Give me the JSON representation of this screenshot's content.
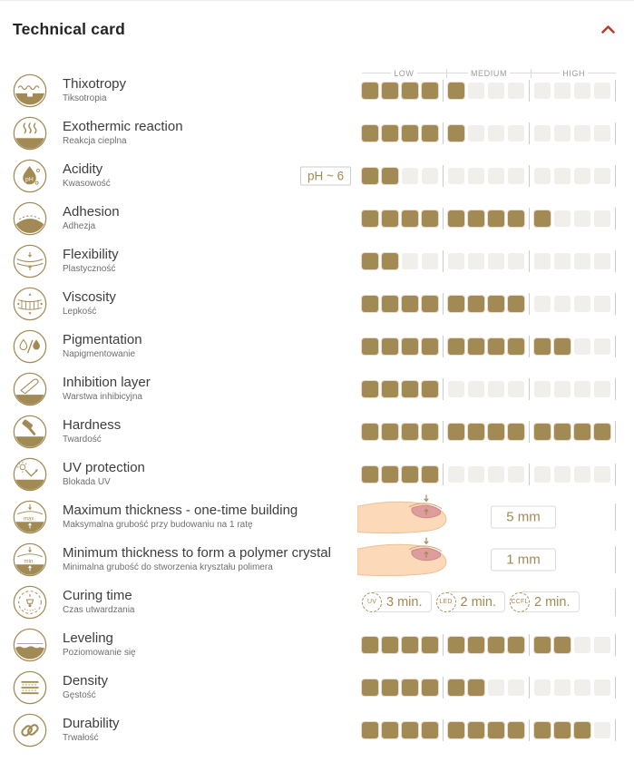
{
  "header": {
    "title": "Technical card",
    "collapse_icon": "chevron-up"
  },
  "colors": {
    "gold": "#a28a54",
    "empty_square": "#f0efeb",
    "accent_red": "#bf3a2b",
    "divider": "#cccccc"
  },
  "scale": {
    "labels": [
      "LOW",
      "MEDIUM",
      "HIGH"
    ],
    "segments": 3,
    "squares_per_segment": 4
  },
  "rows": [
    {
      "type": "rating",
      "icon": "thixotropy-icon",
      "label": "Thixotropy",
      "sublabel": "Tiksotropia",
      "value": 5,
      "max": 12,
      "show_scale_header": true
    },
    {
      "type": "rating",
      "icon": "exothermic-reaction-icon",
      "label": "Exothermic reaction",
      "sublabel": "Reakcja cieplna",
      "value": 5,
      "max": 12
    },
    {
      "type": "rating",
      "icon": "acidity-icon",
      "label": "Acidity",
      "sublabel": "Kwasowość",
      "value": 2,
      "max": 12,
      "badge": "pH ~ 6"
    },
    {
      "type": "rating",
      "icon": "adhesion-icon",
      "label": "Adhesion",
      "sublabel": "Adhezja",
      "value": 9,
      "max": 12
    },
    {
      "type": "rating",
      "icon": "flexibility-icon",
      "label": "Flexibility",
      "sublabel": "Plastyczność",
      "value": 2,
      "max": 12
    },
    {
      "type": "rating",
      "icon": "viscosity-icon",
      "label": "Viscosity",
      "sublabel": "Lepkość",
      "value": 8,
      "max": 12
    },
    {
      "type": "rating",
      "icon": "pigmentation-icon",
      "label": "Pigmentation",
      "sublabel": "Napigmentowanie",
      "value": 10,
      "max": 12
    },
    {
      "type": "rating",
      "icon": "inhibition-layer-icon",
      "label": "Inhibition layer",
      "sublabel": "Warstwa inhibicyjna",
      "value": 4,
      "max": 12
    },
    {
      "type": "rating",
      "icon": "hardness-icon",
      "label": "Hardness",
      "sublabel": "Twardość",
      "value": 12,
      "max": 12
    },
    {
      "type": "rating",
      "icon": "uv-protection-icon",
      "label": "UV protection",
      "sublabel": "Blokada UV",
      "value": 4,
      "max": 12
    },
    {
      "type": "measure",
      "icon": "max-thickness-icon",
      "label": "Maximum thickness - one-time building",
      "sublabel": "Maksymalna grubość przy budowaniu na 1 ratę",
      "measure": "5 mm",
      "illustration": "finger-nail-illustration"
    },
    {
      "type": "measure",
      "icon": "min-thickness-icon",
      "label": "Minimum thickness to form a polymer crystal",
      "sublabel": "Minimalna grubość do stworzenia kryształu polimera",
      "measure": "1 mm",
      "illustration": "finger-nail-illustration"
    },
    {
      "type": "curing",
      "icon": "curing-time-icon",
      "label": "Curing time",
      "sublabel": "Czas utwardzania",
      "badges": [
        {
          "lamp": "UV",
          "time": "3 min."
        },
        {
          "lamp": "LED",
          "time": "2 min."
        },
        {
          "lamp": "CCFL",
          "time": "2 min."
        }
      ]
    },
    {
      "type": "rating",
      "icon": "leveling-icon",
      "label": "Leveling",
      "sublabel": "Poziomowanie się",
      "value": 10,
      "max": 12
    },
    {
      "type": "rating",
      "icon": "density-icon",
      "label": "Density",
      "sublabel": "Gęstość",
      "value": 6,
      "max": 12
    },
    {
      "type": "rating",
      "icon": "durability-icon",
      "label": "Durability",
      "sublabel": "Trwałość",
      "value": 11,
      "max": 12
    }
  ]
}
